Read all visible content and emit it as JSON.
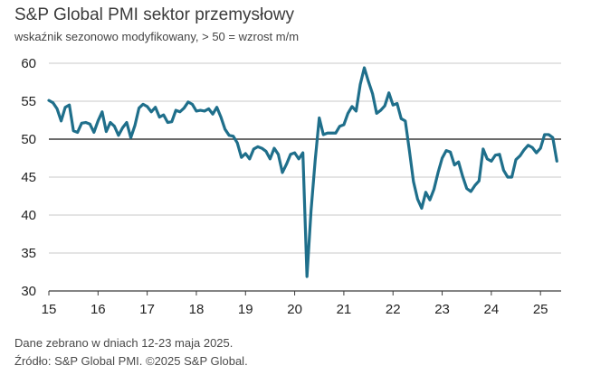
{
  "chart_data": {
    "type": "line",
    "title": "S&P Global PMI sektor przemysłowy",
    "subtitle": "wskaźnik sezonowo modyfikowany, > 50 = wzrost m/m",
    "xlabel": "",
    "ylabel": "",
    "ylim": [
      30,
      60
    ],
    "xlim": [
      2015.0,
      2025.42
    ],
    "y_ticks": [
      "30",
      "35",
      "40",
      "45",
      "50",
      "55",
      "60"
    ],
    "x_ticks": [
      "15",
      "16",
      "17",
      "18",
      "19",
      "20",
      "21",
      "22",
      "23",
      "24",
      "25"
    ],
    "grid": "horizontal",
    "reference_line": 50,
    "line_color": "#1f6f8b",
    "series": [
      {
        "x": [
          "2015-01",
          "2015-02",
          "2015-03",
          "2015-04",
          "2015-05",
          "2015-06",
          "2015-07",
          "2015-08",
          "2015-09",
          "2015-10",
          "2015-11",
          "2015-12",
          "2016-01",
          "2016-02",
          "2016-03",
          "2016-04",
          "2016-05",
          "2016-06",
          "2016-07",
          "2016-08",
          "2016-09",
          "2016-10",
          "2016-11",
          "2016-12",
          "2017-01",
          "2017-02",
          "2017-03",
          "2017-04",
          "2017-05",
          "2017-06",
          "2017-07",
          "2017-08",
          "2017-09",
          "2017-10",
          "2017-11",
          "2017-12",
          "2018-01",
          "2018-02",
          "2018-03",
          "2018-04",
          "2018-05",
          "2018-06",
          "2018-07",
          "2018-08",
          "2018-09",
          "2018-10",
          "2018-11",
          "2018-12",
          "2019-01",
          "2019-02",
          "2019-03",
          "2019-04",
          "2019-05",
          "2019-06",
          "2019-07",
          "2019-08",
          "2019-09",
          "2019-10",
          "2019-11",
          "2019-12",
          "2020-01",
          "2020-02",
          "2020-03",
          "2020-04",
          "2020-05",
          "2020-06",
          "2020-07",
          "2020-08",
          "2020-09",
          "2020-10",
          "2020-11",
          "2020-12",
          "2021-01",
          "2021-02",
          "2021-03",
          "2021-04",
          "2021-05",
          "2021-06",
          "2021-07",
          "2021-08",
          "2021-09",
          "2021-10",
          "2021-11",
          "2021-12",
          "2022-01",
          "2022-02",
          "2022-03",
          "2022-04",
          "2022-05",
          "2022-06",
          "2022-07",
          "2022-08",
          "2022-09",
          "2022-10",
          "2022-11",
          "2022-12",
          "2023-01",
          "2023-02",
          "2023-03",
          "2023-04",
          "2023-05",
          "2023-06",
          "2023-07",
          "2023-08",
          "2023-09",
          "2023-10",
          "2023-11",
          "2023-12",
          "2024-01",
          "2024-02",
          "2024-03",
          "2024-04",
          "2024-05",
          "2024-06",
          "2024-07",
          "2024-08",
          "2024-09",
          "2024-10",
          "2024-11",
          "2024-12",
          "2025-01",
          "2025-02",
          "2025-03",
          "2025-04",
          "2025-05"
        ],
        "values": [
          55.1,
          54.8,
          54.0,
          52.4,
          54.2,
          54.5,
          51.1,
          50.9,
          52.1,
          52.2,
          52.0,
          50.9,
          52.4,
          53.6,
          51.0,
          52.2,
          51.7,
          50.5,
          51.5,
          52.2,
          50.2,
          51.8,
          54.1,
          54.6,
          54.3,
          53.6,
          54.2,
          52.9,
          53.2,
          52.2,
          52.3,
          53.8,
          53.6,
          54.1,
          54.9,
          54.6,
          53.7,
          53.8,
          53.7,
          54.0,
          53.3,
          54.2,
          52.9,
          51.3,
          50.5,
          50.4,
          49.5,
          47.6,
          48.1,
          47.4,
          48.7,
          49.0,
          48.8,
          48.4,
          47.4,
          48.8,
          48.0,
          45.6,
          46.7,
          48.0,
          48.2,
          47.4,
          48.2,
          31.9,
          40.6,
          47.2,
          52.8,
          50.6,
          50.8,
          50.8,
          50.8,
          51.7,
          51.9,
          53.4,
          54.3,
          53.7,
          57.2,
          59.4,
          57.6,
          56.0,
          53.4,
          53.8,
          54.4,
          56.1,
          54.5,
          54.7,
          52.7,
          52.4,
          48.5,
          44.4,
          42.1,
          40.9,
          43.0,
          42.0,
          43.4,
          45.6,
          47.5,
          48.5,
          48.3,
          46.6,
          47.0,
          45.1,
          43.5,
          43.1,
          43.9,
          44.5,
          48.7,
          47.4,
          47.1,
          47.9,
          48.0,
          45.9,
          45.0,
          45.0,
          47.3,
          47.8,
          48.6,
          49.2,
          48.9,
          48.2,
          48.8,
          50.6,
          50.6,
          50.2,
          47.1
        ]
      }
    ]
  },
  "footnotes": {
    "collection": "Dane zebrano w dniach 12-23 maja 2025.",
    "source": "Źródło: S&P Global PMI. ©2025 S&P Global."
  }
}
